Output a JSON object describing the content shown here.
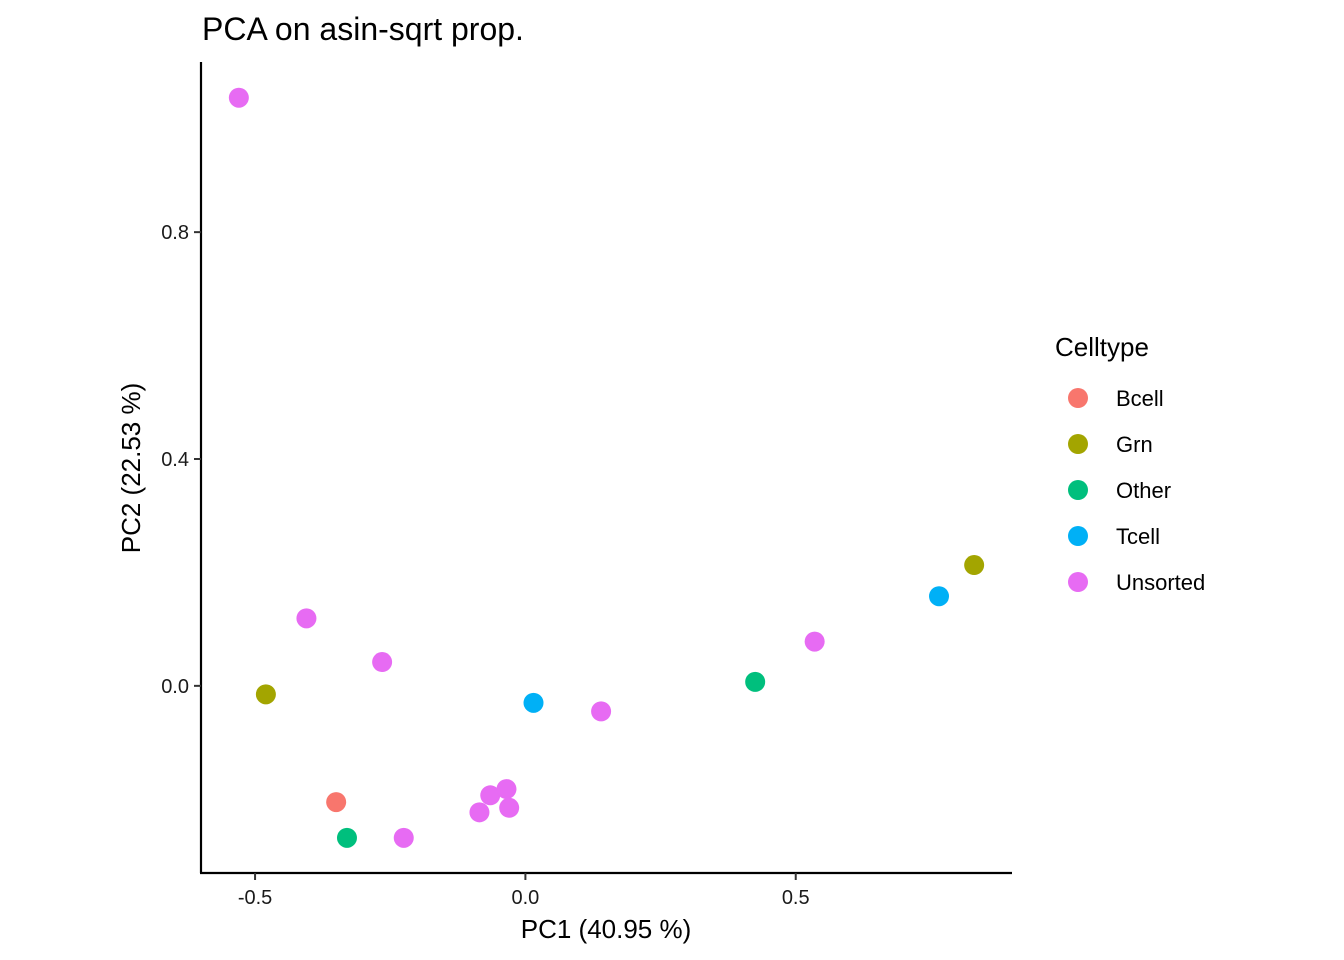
{
  "chart_data": {
    "type": "scatter",
    "title": "PCA on asin-sqrt prop.",
    "xlabel": "PC1 (40.95 %)",
    "ylabel": "PC2 (22.53 %)",
    "xlim": [
      -0.6,
      0.9
    ],
    "ylim": [
      -0.33,
      1.1
    ],
    "xticks": [
      -0.5,
      0.0,
      0.5
    ],
    "xtick_labels": [
      "-0.5",
      "0.0",
      "0.5"
    ],
    "yticks": [
      0.0,
      0.4,
      0.8
    ],
    "ytick_labels": [
      "0.0",
      "0.4",
      "0.8"
    ],
    "grid": false,
    "legend": {
      "title": "Celltype",
      "position": "right",
      "entries": [
        {
          "name": "Bcell",
          "color": "#F8766D"
        },
        {
          "name": "Grn",
          "color": "#A3A500"
        },
        {
          "name": "Other",
          "color": "#00BF7D"
        },
        {
          "name": "Tcell",
          "color": "#00B0F6"
        },
        {
          "name": "Unsorted",
          "color": "#E76BF3"
        }
      ]
    },
    "series": [
      {
        "name": "Bcell",
        "points": [
          [
            -0.35,
            -0.205
          ]
        ]
      },
      {
        "name": "Grn",
        "points": [
          [
            -0.48,
            -0.015
          ],
          [
            0.83,
            0.213
          ]
        ]
      },
      {
        "name": "Other",
        "points": [
          [
            -0.33,
            -0.268
          ],
          [
            0.425,
            0.007
          ]
        ]
      },
      {
        "name": "Tcell",
        "points": [
          [
            0.015,
            -0.03
          ],
          [
            0.765,
            0.158
          ]
        ]
      },
      {
        "name": "Unsorted",
        "points": [
          [
            -0.53,
            1.037
          ],
          [
            -0.405,
            0.119
          ],
          [
            -0.265,
            0.042
          ],
          [
            0.14,
            -0.045
          ],
          [
            0.535,
            0.078
          ],
          [
            -0.225,
            -0.268
          ],
          [
            -0.085,
            -0.223
          ],
          [
            -0.065,
            -0.193
          ],
          [
            -0.035,
            -0.182
          ],
          [
            -0.03,
            -0.215
          ]
        ]
      }
    ]
  }
}
